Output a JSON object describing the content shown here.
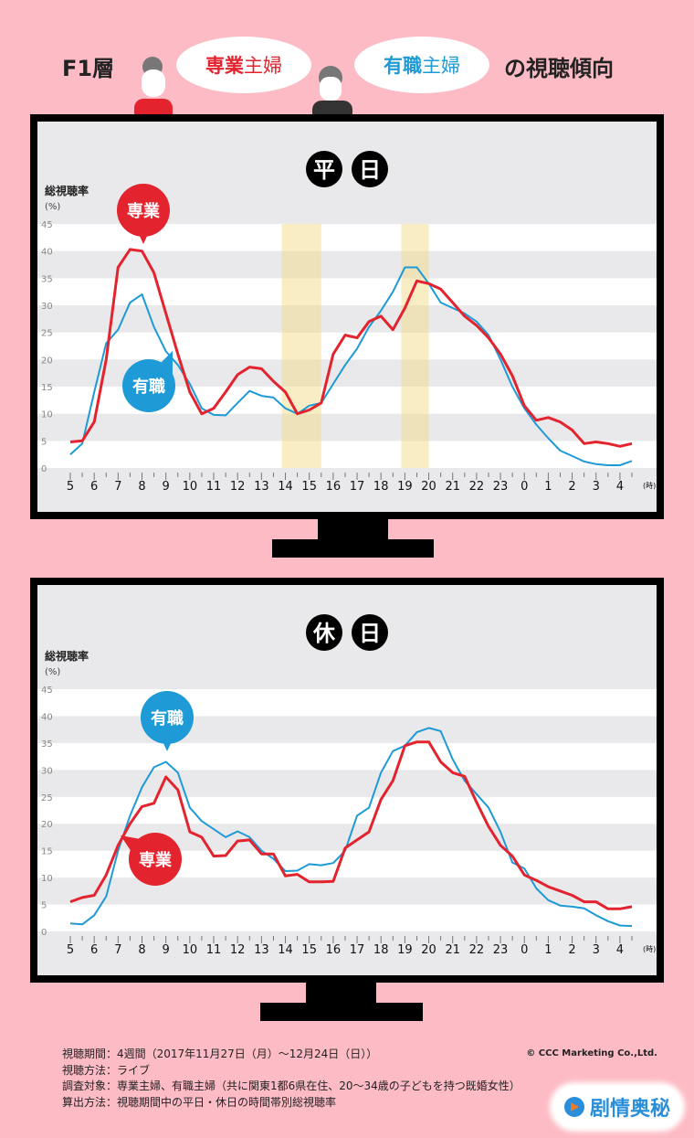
{
  "header": {
    "prefix": "F1層",
    "bubble1_a": "専業",
    "bubble1_b": "主婦",
    "bubble2_a": "有職",
    "bubble2_b": "主婦",
    "suffix": "の視聴傾向"
  },
  "colors": {
    "sengyo": "#e3232e",
    "yushoku": "#1e9ad6",
    "highlight": "#f7e9b5",
    "background": "#fdbcc5"
  },
  "chart_data": [
    {
      "type": "line",
      "title": "平日",
      "title_chars": [
        "平",
        "日"
      ],
      "ylabel": "総視聴率",
      "yunit": "(%)",
      "xunit": "(時)",
      "ylim": [
        0,
        45
      ],
      "yticks": [
        0,
        5,
        10,
        15,
        20,
        25,
        30,
        35,
        40,
        45
      ],
      "xtick_labels": [
        "5",
        "6",
        "7",
        "8",
        "9",
        "10",
        "11",
        "12",
        "13",
        "14",
        "15",
        "16",
        "17",
        "18",
        "19",
        "20",
        "21",
        "22",
        "23",
        "0",
        "1",
        "2",
        "3",
        "4"
      ],
      "x_start_hour": 5,
      "x_step_hours": 0.5,
      "highlights": [
        [
          14,
          15.5
        ],
        [
          19,
          20
        ]
      ],
      "series": [
        {
          "name": "専業",
          "color": "#e3232e",
          "values": [
            4.8,
            5,
            8.5,
            20,
            37,
            40.3,
            40,
            36,
            28.5,
            21,
            14,
            10,
            11,
            14,
            17.2,
            18.6,
            18.3,
            16,
            14,
            10,
            10.7,
            12,
            21,
            24.5,
            24,
            27,
            28,
            25.5,
            29.5,
            34.5,
            34,
            33,
            30.5,
            28,
            26.3,
            24,
            21,
            17,
            11.5,
            8.8,
            9.3,
            8.5,
            7,
            4.5,
            4.8,
            4.5,
            4,
            4.5
          ]
        },
        {
          "name": "有職",
          "color": "#1e9ad6",
          "values": [
            2.5,
            4.5,
            14,
            23,
            25.5,
            30.5,
            32,
            26,
            21.5,
            19,
            15.5,
            11,
            9.8,
            9.7,
            12,
            14.2,
            13.3,
            13,
            11,
            10,
            11.5,
            12,
            15.5,
            19,
            22,
            26,
            29,
            32.5,
            37,
            37,
            34,
            30.5,
            29.5,
            28.5,
            27,
            24.5,
            20,
            15,
            11,
            8,
            5.5,
            3.2,
            2.2,
            1.2,
            0.7,
            0.5,
            0.5,
            1.3
          ]
        }
      ]
    },
    {
      "type": "line",
      "title": "休日",
      "title_chars": [
        "休",
        "日"
      ],
      "ylabel": "総視聴率",
      "yunit": "(%)",
      "xunit": "(時)",
      "ylim": [
        0,
        45
      ],
      "yticks": [
        0,
        5,
        10,
        15,
        20,
        25,
        30,
        35,
        40,
        45
      ],
      "xtick_labels": [
        "5",
        "6",
        "7",
        "8",
        "9",
        "10",
        "11",
        "12",
        "13",
        "14",
        "15",
        "16",
        "17",
        "18",
        "19",
        "20",
        "21",
        "22",
        "23",
        "0",
        "1",
        "2",
        "3",
        "4"
      ],
      "x_start_hour": 5,
      "x_step_hours": 0.5,
      "highlights": [],
      "series": [
        {
          "name": "専業",
          "color": "#e3232e",
          "values": [
            5.5,
            6.3,
            6.7,
            10.5,
            16,
            20,
            23.2,
            23.8,
            28.7,
            26.3,
            18.5,
            17.5,
            14,
            14.1,
            16.8,
            17,
            14.4,
            14.4,
            10.3,
            10.6,
            9.2,
            9.2,
            9.3,
            15.5,
            17,
            18.5,
            24.5,
            28,
            34.5,
            35.2,
            35.2,
            31.5,
            29.5,
            28.8,
            24,
            19.5,
            16,
            14,
            10.5,
            9.5,
            8.3,
            7.5,
            6.7,
            5.5,
            5.5,
            4.2,
            4.2,
            4.6
          ]
        },
        {
          "name": "有職",
          "color": "#1e9ad6",
          "values": [
            1.5,
            1.3,
            3,
            6.5,
            15,
            21.5,
            26.8,
            30.5,
            31.5,
            29.5,
            23,
            20.5,
            19,
            17.5,
            18.6,
            17.5,
            15,
            13.5,
            11.2,
            11.3,
            12.5,
            12.3,
            12.7,
            15,
            21.5,
            23,
            29.5,
            33.5,
            34.5,
            37,
            37.8,
            37.2,
            32,
            28,
            25.5,
            23,
            18.5,
            12.8,
            11.7,
            8,
            5.8,
            4.8,
            4.6,
            4.3,
            3,
            1.9,
            1.1,
            1.0
          ]
        }
      ]
    }
  ],
  "footer": {
    "lines": [
      "視聴期間：4週間（2017年11月27日（月）～12月24日（日））",
      "視聴方法：ライブ",
      "調査対象：専業主婦、有職主婦（共に関東1都6県在住、20～34歳の子どもを持つ既婚女性）",
      "算出方法：視聴期間中の平日・休日の時間帯別総視聴率"
    ],
    "copyright": "© CCC Marketing Co.,Ltd.",
    "watermark": "剧情奥秘"
  }
}
